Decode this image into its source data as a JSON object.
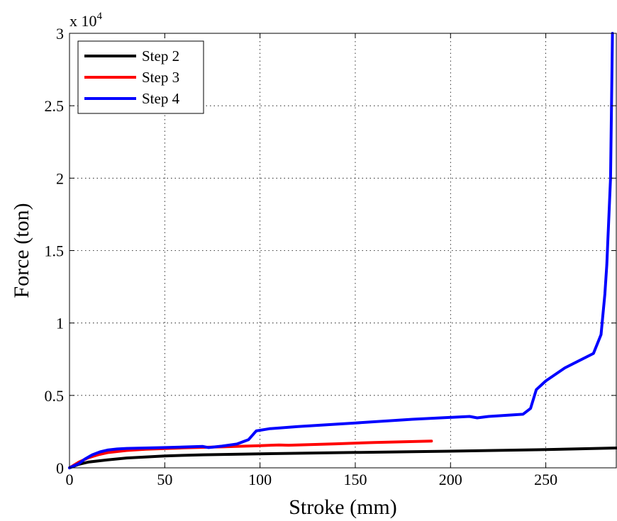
{
  "chart_data": {
    "type": "line",
    "xlabel": "Stroke (mm)",
    "ylabel": "Force (ton)",
    "y_multiplier_label": {
      "base": "x 10",
      "exponent": "4"
    },
    "xlim": [
      0,
      287
    ],
    "ylim": [
      0,
      30000
    ],
    "x_ticks": [
      0,
      50,
      100,
      150,
      200,
      250
    ],
    "y_ticks": [
      0,
      5000,
      10000,
      15000,
      20000,
      25000,
      30000
    ],
    "y_tick_labels": [
      "0",
      "0.5",
      "1",
      "1.5",
      "2",
      "2.5",
      "3"
    ],
    "grid": true,
    "legend_position": "top-left",
    "series": [
      {
        "name": "Step 2",
        "color": "#000000",
        "points": [
          [
            0,
            0
          ],
          [
            5,
            250
          ],
          [
            10,
            400
          ],
          [
            20,
            550
          ],
          [
            30,
            680
          ],
          [
            50,
            820
          ],
          [
            70,
            900
          ],
          [
            100,
            970
          ],
          [
            150,
            1060
          ],
          [
            200,
            1150
          ],
          [
            250,
            1260
          ],
          [
            287,
            1370
          ]
        ]
      },
      {
        "name": "Step 3",
        "color": "#ff0000",
        "points": [
          [
            0,
            0
          ],
          [
            5,
            400
          ],
          [
            10,
            700
          ],
          [
            15,
            900
          ],
          [
            20,
            1050
          ],
          [
            30,
            1200
          ],
          [
            40,
            1280
          ],
          [
            60,
            1380
          ],
          [
            80,
            1450
          ],
          [
            100,
            1530
          ],
          [
            110,
            1580
          ],
          [
            115,
            1560
          ],
          [
            140,
            1660
          ],
          [
            160,
            1750
          ],
          [
            190,
            1850
          ]
        ]
      },
      {
        "name": "Step 4",
        "color": "#0000ff",
        "points": [
          [
            0,
            0
          ],
          [
            5,
            300
          ],
          [
            8,
            600
          ],
          [
            12,
            900
          ],
          [
            16,
            1100
          ],
          [
            20,
            1230
          ],
          [
            25,
            1300
          ],
          [
            30,
            1340
          ],
          [
            50,
            1400
          ],
          [
            70,
            1480
          ],
          [
            73,
            1400
          ],
          [
            80,
            1500
          ],
          [
            88,
            1650
          ],
          [
            94,
            1950
          ],
          [
            98,
            2550
          ],
          [
            105,
            2700
          ],
          [
            120,
            2850
          ],
          [
            150,
            3100
          ],
          [
            180,
            3350
          ],
          [
            210,
            3550
          ],
          [
            214,
            3450
          ],
          [
            220,
            3550
          ],
          [
            238,
            3700
          ],
          [
            242,
            4100
          ],
          [
            245,
            5400
          ],
          [
            250,
            6000
          ],
          [
            260,
            6900
          ],
          [
            275,
            7900
          ],
          [
            279,
            9200
          ],
          [
            281,
            12000
          ],
          [
            282,
            14000
          ],
          [
            284,
            20000
          ],
          [
            285,
            30000
          ]
        ]
      }
    ]
  }
}
